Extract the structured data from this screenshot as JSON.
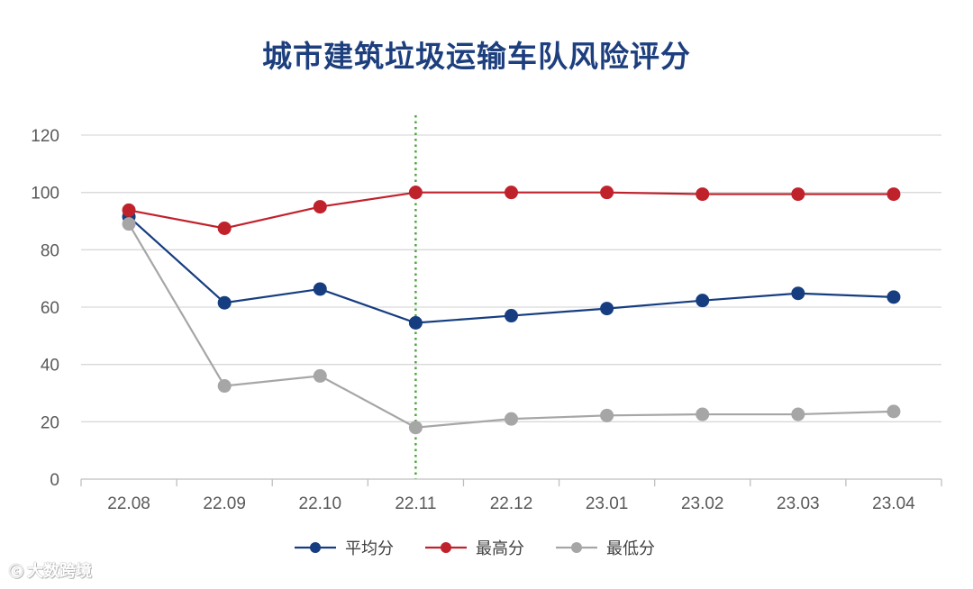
{
  "chart_data": {
    "type": "line",
    "title": "城市建筑垃圾运输车队风险评分",
    "categories": [
      "22.08",
      "22.09",
      "22.10",
      "22.11",
      "22.12",
      "23.01",
      "23.02",
      "23.03",
      "23.04"
    ],
    "ylim": [
      0,
      120
    ],
    "yticks": [
      0,
      20,
      40,
      60,
      80,
      100,
      120
    ],
    "grid": true,
    "legend_position": "bottom",
    "marker_line_category": "22.11",
    "series": [
      {
        "name": "平均分",
        "color": "#163d80",
        "values": [
          91.5,
          61.5,
          66.3,
          54.5,
          57.0,
          59.5,
          62.3,
          64.8,
          63.5
        ]
      },
      {
        "name": "最高分",
        "color": "#c0222c",
        "values": [
          93.8,
          87.5,
          95.0,
          100.0,
          100.0,
          100.0,
          99.4,
          99.4,
          99.4
        ]
      },
      {
        "name": "最低分",
        "color": "#a6a6a6",
        "values": [
          89.0,
          32.5,
          36.0,
          18.0,
          21.0,
          22.2,
          22.6,
          22.6,
          23.6
        ]
      }
    ],
    "marker_line_color": "#4aa43a"
  },
  "watermark": {
    "text": "大数跨境"
  }
}
